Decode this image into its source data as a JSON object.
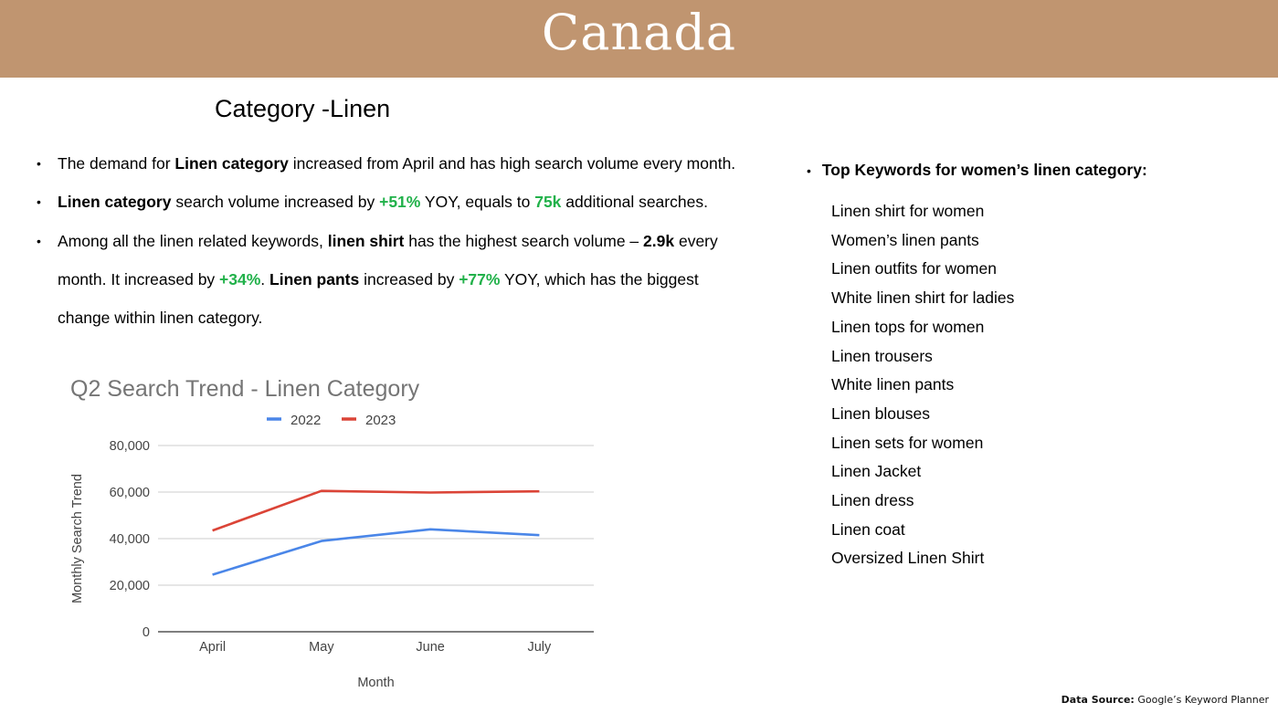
{
  "banner": {
    "title": "Canada",
    "color": "#c09570"
  },
  "section_title": "Category -Linen",
  "bullets": {
    "b1": {
      "t1": "The demand for ",
      "b1": "Linen category",
      "t2": " increased from April and has high search volume every month."
    },
    "b2": {
      "b1": "Linen category",
      "t1": " search volume increased by ",
      "g1": "+51%",
      "t2": " YOY, equals to ",
      "g2": "75k",
      "t3": " additional searches."
    },
    "b3": {
      "t1": "Among all the linen related keywords, ",
      "b1": "linen shirt",
      "t2": " has the highest search volume – ",
      "b2": "2.9k",
      "t3": " every",
      "t4": "month. It increased by ",
      "g1": "+34%",
      "t5": ". ",
      "b3": "Linen pants",
      "t6": " increased by ",
      "g2": "+77%",
      "t7": " YOY, which has the biggest",
      "t8": "change within linen category."
    }
  },
  "keywords": {
    "heading": "Top Keywords for women’s linen category:",
    "items": [
      "Linen shirt for women",
      "Women’s linen pants",
      "Linen outfits for women",
      "White linen shirt for ladies",
      "Linen tops for women",
      "Linen trousers",
      "White linen pants",
      "Linen blouses",
      "Linen sets for women",
      "Linen Jacket",
      "Linen dress",
      "Linen coat",
      "Oversized Linen Shirt"
    ]
  },
  "source": {
    "label": "Data Source:",
    "text": " Google’s Keyword Planner"
  },
  "chart_data": {
    "type": "line",
    "title": "Q2 Search Trend - Linen Category",
    "xlabel": "Month",
    "ylabel": "Monthly Search Trend",
    "categories": [
      "April",
      "May",
      "June",
      "July"
    ],
    "ylim": [
      0,
      80000
    ],
    "yticks": [
      "0",
      "20,000",
      "40,000",
      "60,000",
      "80,000"
    ],
    "ytick_values": [
      0,
      20000,
      40000,
      60000,
      80000
    ],
    "legend_position": "top",
    "grid": true,
    "series": [
      {
        "name": "2022",
        "color": "#4a86e8",
        "values": [
          24500,
          39000,
          44000,
          41500
        ]
      },
      {
        "name": "2023",
        "color": "#db4437",
        "values": [
          43500,
          60500,
          59800,
          60300
        ]
      }
    ]
  }
}
